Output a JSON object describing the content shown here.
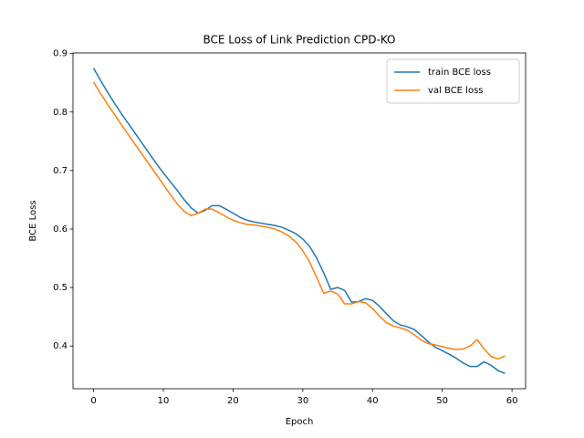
{
  "chart_data": {
    "type": "line",
    "title": "BCE Loss of Link Prediction CPD-KO",
    "x_label": "Epoch",
    "y_label": "BCE Loss",
    "x": [
      0,
      1,
      2,
      3,
      4,
      5,
      6,
      7,
      8,
      9,
      10,
      11,
      12,
      13,
      14,
      15,
      16,
      17,
      18,
      19,
      20,
      21,
      22,
      23,
      24,
      25,
      26,
      27,
      28,
      29,
      30,
      31,
      32,
      33,
      34,
      35,
      36,
      37,
      38,
      39,
      40,
      41,
      42,
      43,
      44,
      45,
      46,
      47,
      48,
      49,
      50,
      51,
      52,
      53,
      54,
      55,
      56,
      57,
      58,
      59
    ],
    "series": [
      {
        "name": "train BCE loss",
        "color": "#1f77b4",
        "values": [
          0.875,
          0.854,
          0.834,
          0.815,
          0.797,
          0.78,
          0.763,
          0.746,
          0.729,
          0.712,
          0.696,
          0.681,
          0.666,
          0.65,
          0.636,
          0.627,
          0.632,
          0.64,
          0.64,
          0.634,
          0.627,
          0.62,
          0.615,
          0.612,
          0.61,
          0.608,
          0.606,
          0.603,
          0.598,
          0.592,
          0.583,
          0.57,
          0.55,
          0.525,
          0.497,
          0.5,
          0.495,
          0.475,
          0.476,
          0.481,
          0.478,
          0.468,
          0.455,
          0.443,
          0.436,
          0.433,
          0.428,
          0.418,
          0.407,
          0.398,
          0.392,
          0.386,
          0.379,
          0.371,
          0.365,
          0.365,
          0.373,
          0.367,
          0.358,
          0.353
        ]
      },
      {
        "name": "val BCE loss",
        "color": "#ff7f0e",
        "values": [
          0.851,
          0.832,
          0.813,
          0.796,
          0.778,
          0.761,
          0.744,
          0.727,
          0.71,
          0.693,
          0.676,
          0.659,
          0.643,
          0.63,
          0.623,
          0.627,
          0.634,
          0.634,
          0.628,
          0.621,
          0.615,
          0.611,
          0.608,
          0.607,
          0.605,
          0.603,
          0.6,
          0.595,
          0.588,
          0.578,
          0.563,
          0.543,
          0.517,
          0.49,
          0.494,
          0.489,
          0.472,
          0.472,
          0.476,
          0.474,
          0.464,
          0.451,
          0.44,
          0.434,
          0.431,
          0.427,
          0.419,
          0.41,
          0.404,
          0.402,
          0.399,
          0.396,
          0.394,
          0.395,
          0.4,
          0.411,
          0.395,
          0.382,
          0.378,
          0.383
        ]
      }
    ],
    "xlim": [
      -2.95,
      61.95
    ],
    "xticks": [
      0,
      10,
      20,
      30,
      40,
      50,
      60
    ],
    "ylim": [
      0.327,
      0.901
    ],
    "yticks": [
      0.4,
      0.5,
      0.6,
      0.7,
      0.8,
      0.9
    ],
    "grid": false,
    "legend": "upper right"
  }
}
